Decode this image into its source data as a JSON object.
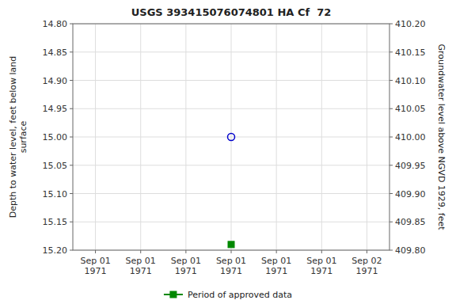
{
  "chart_data": {
    "type": "scatter",
    "title": "USGS 393415076074801 HA Cf  72",
    "ylabel": "Depth to water level, feet below land\nsurface",
    "y2label": "Groundwater level above NGVD 1929, feet",
    "categories": [
      "Sep 01\n1971",
      "Sep 01\n1971",
      "Sep 01\n1971",
      "Sep 01\n1971",
      "Sep 01\n1971",
      "Sep 01\n1971",
      "Sep 02\n1971"
    ],
    "series": [
      {
        "color": "#0000cc",
        "marker": "open-circle",
        "values": [
          null,
          null,
          null,
          15.0,
          null,
          null,
          null
        ]
      },
      {
        "name": "Period of approved data",
        "color": "#008800",
        "marker": "square",
        "values": [
          null,
          null,
          null,
          15.19,
          null,
          null,
          null
        ]
      }
    ],
    "ylim": [
      15.2,
      14.8
    ],
    "yticks": [
      {
        "value": 14.8,
        "label": "14.80"
      },
      {
        "value": 14.85,
        "label": "14.85"
      },
      {
        "value": 14.9,
        "label": "14.90"
      },
      {
        "value": 14.95,
        "label": "14.95"
      },
      {
        "value": 15,
        "label": "15.00"
      },
      {
        "value": 15.05,
        "label": "15.05"
      },
      {
        "value": 15.1,
        "label": "15.10"
      },
      {
        "value": 15.15,
        "label": "15.15"
      },
      {
        "value": 15.2,
        "label": "15.20"
      }
    ],
    "y2lim": [
      409.8,
      410.2
    ],
    "y2ticks": [
      {
        "value": 410.2,
        "label": "410.20"
      },
      {
        "value": 410.15,
        "label": "410.15"
      },
      {
        "value": 410.1,
        "label": "410.10"
      },
      {
        "value": 410.05,
        "label": "410.05"
      },
      {
        "value": 410,
        "label": "410.00"
      },
      {
        "value": 409.95,
        "label": "409.95"
      },
      {
        "value": 409.9,
        "label": "409.90"
      },
      {
        "value": 409.85,
        "label": "409.85"
      },
      {
        "value": 409.8,
        "label": "409.80"
      }
    ],
    "grid": true,
    "legend": "bottom"
  }
}
